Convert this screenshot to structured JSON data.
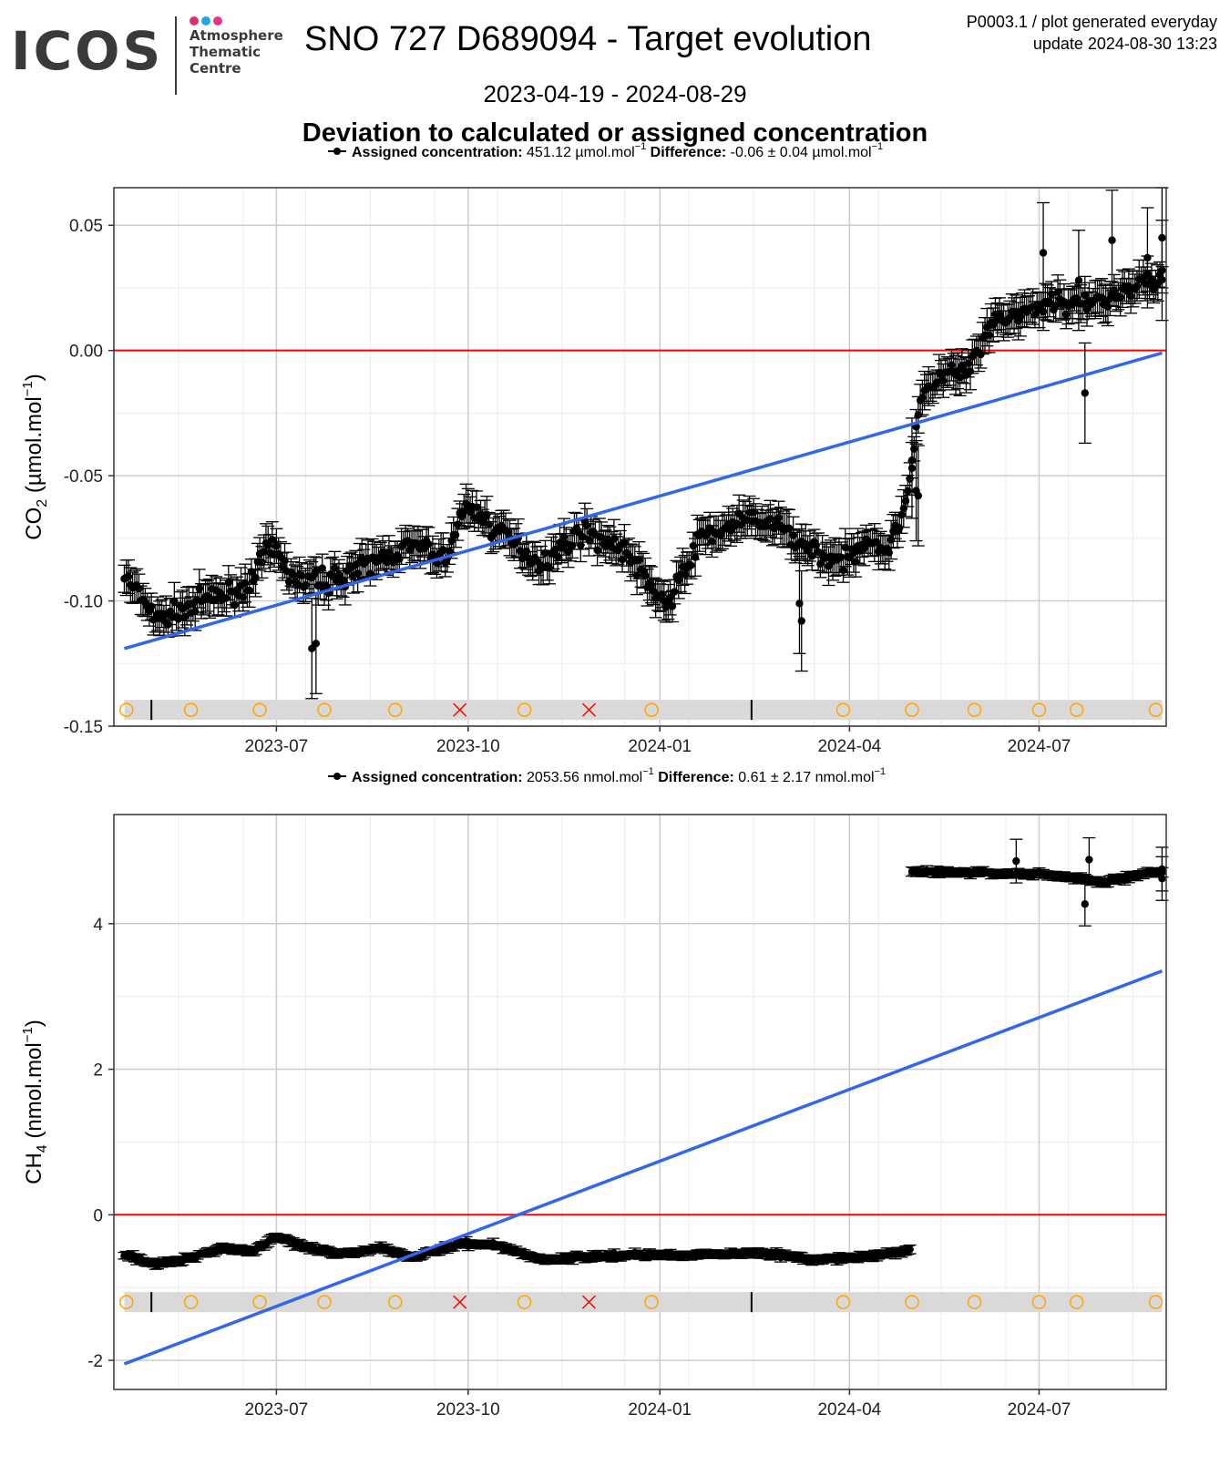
{
  "header": {
    "logo_word": "ICOS",
    "logo_lines": [
      "Atmosphere",
      "Thematic",
      "Centre"
    ],
    "logo_dot_colors": [
      "#d6336c",
      "#22a6e6",
      "#e6338a"
    ],
    "title": "SNO 727 D689094 - Target evolution",
    "meta_line1": "P0003.1 / plot generated everyday",
    "meta_line2": "update  2024-08-30 13:23",
    "date_range": "2023-04-19 - 2024-08-29",
    "section_title": "Deviation to calculated or assigned concentration"
  },
  "colors": {
    "points": "#000000",
    "zero_line": "#ff0000",
    "trend_line": "#3366ee",
    "status_band": "#d9d9d9",
    "ok_marker": "#ffa500",
    "rejected_marker": "#ff0000",
    "grid_major": "#cccccc",
    "grid_minor": "#ececec"
  },
  "chart_data": [
    {
      "type": "scatter",
      "legend": {
        "assigned_label": "Assigned concentration:",
        "assigned_value": "451.12 µmol.mol",
        "difference_label": "Difference:",
        "difference_value": "-0.06 ± 0.04 µmol.mol",
        "unit_exponent": "−1"
      },
      "ylabel": "CO₂ (µmol.mol⁻¹)",
      "ylabel_parts": [
        "CO",
        "2",
        " (µmol.mol",
        "−1",
        ")"
      ],
      "ylim": [
        -0.15,
        0.065
      ],
      "yticks": [
        -0.15,
        -0.1,
        -0.05,
        0.0,
        0.05
      ],
      "ytick_labels": [
        "-0.15",
        "-0.10",
        "-0.05",
        "0.00",
        "0.05"
      ],
      "xlim": [
        "2023-04-14",
        "2024-08-31"
      ],
      "xticks": [
        "2023-07-01",
        "2023-10-01",
        "2024-01-01",
        "2024-04-01",
        "2024-07-01"
      ],
      "xtick_labels": [
        "2023-07",
        "2023-10",
        "2024-01",
        "2024-04",
        "2024-07"
      ],
      "reference_line": 0,
      "trend": {
        "start": [
          "2023-04-19",
          -0.119
        ],
        "end": [
          "2024-08-29",
          -0.001
        ]
      },
      "anchors": [
        [
          "2023-04-19",
          -0.09
        ],
        [
          "2023-05-05",
          -0.108
        ],
        [
          "2023-05-25",
          -0.1
        ],
        [
          "2023-06-15",
          -0.096
        ],
        [
          "2023-06-28",
          -0.078
        ],
        [
          "2023-07-10",
          -0.092
        ],
        [
          "2023-07-25",
          -0.092
        ],
        [
          "2023-08-15",
          -0.085
        ],
        [
          "2023-09-05",
          -0.078
        ],
        [
          "2023-09-20",
          -0.083
        ],
        [
          "2023-09-30",
          -0.062
        ],
        [
          "2023-10-20",
          -0.075
        ],
        [
          "2023-11-05",
          -0.085
        ],
        [
          "2023-11-25",
          -0.072
        ],
        [
          "2023-12-15",
          -0.08
        ],
        [
          "2024-01-05",
          -0.102
        ],
        [
          "2024-01-20",
          -0.075
        ],
        [
          "2024-02-10",
          -0.068
        ],
        [
          "2024-02-28",
          -0.07
        ],
        [
          "2024-03-10",
          -0.078
        ],
        [
          "2024-03-28",
          -0.085
        ],
        [
          "2024-04-10",
          -0.075
        ],
        [
          "2024-04-20",
          -0.08
        ],
        [
          "2024-04-28",
          -0.06
        ],
        [
          "2024-05-05",
          -0.02
        ],
        [
          "2024-05-15",
          -0.01
        ],
        [
          "2024-05-28",
          -0.008
        ],
        [
          "2024-06-10",
          0.012
        ],
        [
          "2024-06-25",
          0.015
        ],
        [
          "2024-07-10",
          0.02
        ],
        [
          "2024-07-25",
          0.018
        ],
        [
          "2024-08-29",
          0.03
        ]
      ],
      "outliers": [
        [
          "2023-07-18",
          -0.119
        ],
        [
          "2023-07-20",
          -0.117
        ],
        [
          "2024-03-08",
          -0.101
        ],
        [
          "2024-03-09",
          -0.108
        ],
        [
          "2024-05-01",
          -0.047
        ],
        [
          "2024-05-03",
          -0.056
        ],
        [
          "2024-05-04",
          -0.058
        ],
        [
          "2024-07-03",
          0.039
        ],
        [
          "2024-07-20",
          0.028
        ],
        [
          "2024-07-23",
          -0.017
        ],
        [
          "2024-08-05",
          0.044
        ],
        [
          "2024-08-22",
          0.037
        ],
        [
          "2024-08-29",
          0.045
        ],
        [
          "2024-08-29",
          0.032
        ]
      ],
      "status_markers": {
        "band_y": -0.1435,
        "circles": [
          "2023-04-20",
          "2023-05-21",
          "2023-06-23",
          "2023-07-24",
          "2023-08-27",
          "2023-10-28",
          "2023-12-28",
          "2024-03-29",
          "2024-05-01",
          "2024-05-31",
          "2024-07-01",
          "2024-07-19",
          "2024-08-26"
        ],
        "crosses": [
          "2023-09-27",
          "2023-11-28"
        ],
        "ticks": [
          "2023-05-02",
          "2024-02-14"
        ]
      }
    },
    {
      "type": "scatter",
      "legend": {
        "assigned_label": "Assigned concentration:",
        "assigned_value": "2053.56 nmol.mol",
        "difference_label": "Difference:",
        "difference_value": "0.61 ± 2.17 nmol.mol",
        "unit_exponent": "−1"
      },
      "ylabel": "CH₄ (nmol.mol⁻¹)",
      "ylabel_parts": [
        "CH",
        "4",
        " (nmol.mol",
        "−1",
        ")"
      ],
      "ylim": [
        -2.4,
        5.5
      ],
      "yticks": [
        -2,
        0,
        2,
        4
      ],
      "ytick_labels": [
        "-2",
        "0",
        "2",
        "4"
      ],
      "xlim": [
        "2023-04-14",
        "2024-08-31"
      ],
      "xticks": [
        "2023-07-01",
        "2023-10-01",
        "2024-01-01",
        "2024-04-01",
        "2024-07-01"
      ],
      "xtick_labels": [
        "2023-07",
        "2023-10",
        "2024-01",
        "2024-04",
        "2024-07"
      ],
      "reference_line": 0,
      "trend": {
        "start": [
          "2023-04-19",
          -2.05
        ],
        "end": [
          "2024-08-29",
          3.35
        ]
      },
      "anchors": [
        [
          "2023-04-19",
          -0.55
        ],
        [
          "2023-05-05",
          -0.68
        ],
        [
          "2023-05-20",
          -0.6
        ],
        [
          "2023-06-05",
          -0.45
        ],
        [
          "2023-06-20",
          -0.5
        ],
        [
          "2023-06-30",
          -0.3
        ],
        [
          "2023-07-15",
          -0.45
        ],
        [
          "2023-08-01",
          -0.55
        ],
        [
          "2023-08-20",
          -0.45
        ],
        [
          "2023-09-05",
          -0.58
        ],
        [
          "2023-09-28",
          -0.4
        ],
        [
          "2023-10-15",
          -0.42
        ],
        [
          "2023-11-05",
          -0.62
        ],
        [
          "2023-11-25",
          -0.58
        ],
        [
          "2023-12-20",
          -0.55
        ],
        [
          "2024-01-20",
          -0.55
        ],
        [
          "2024-02-20",
          -0.52
        ],
        [
          "2024-03-15",
          -0.62
        ],
        [
          "2024-04-10",
          -0.58
        ],
        [
          "2024-04-30",
          -0.48
        ],
        [
          "2024-05-01",
          4.72
        ],
        [
          "2024-06-01",
          4.7
        ],
        [
          "2024-07-01",
          4.68
        ],
        [
          "2024-08-01",
          4.58
        ],
        [
          "2024-08-29",
          4.72
        ]
      ],
      "outliers": [
        [
          "2024-07-23",
          4.27
        ],
        [
          "2024-07-25",
          4.88
        ],
        [
          "2024-08-29",
          4.75
        ],
        [
          "2024-08-29",
          4.62
        ],
        [
          "2024-06-20",
          4.86
        ]
      ],
      "status_markers": {
        "band_y": -1.2,
        "circles": [
          "2023-04-20",
          "2023-05-21",
          "2023-06-23",
          "2023-07-24",
          "2023-08-27",
          "2023-10-28",
          "2023-12-28",
          "2024-03-29",
          "2024-05-01",
          "2024-05-31",
          "2024-07-01",
          "2024-07-19",
          "2024-08-26"
        ],
        "crosses": [
          "2023-09-27",
          "2023-11-28"
        ],
        "ticks": [
          "2023-05-02",
          "2024-02-14"
        ]
      }
    }
  ]
}
